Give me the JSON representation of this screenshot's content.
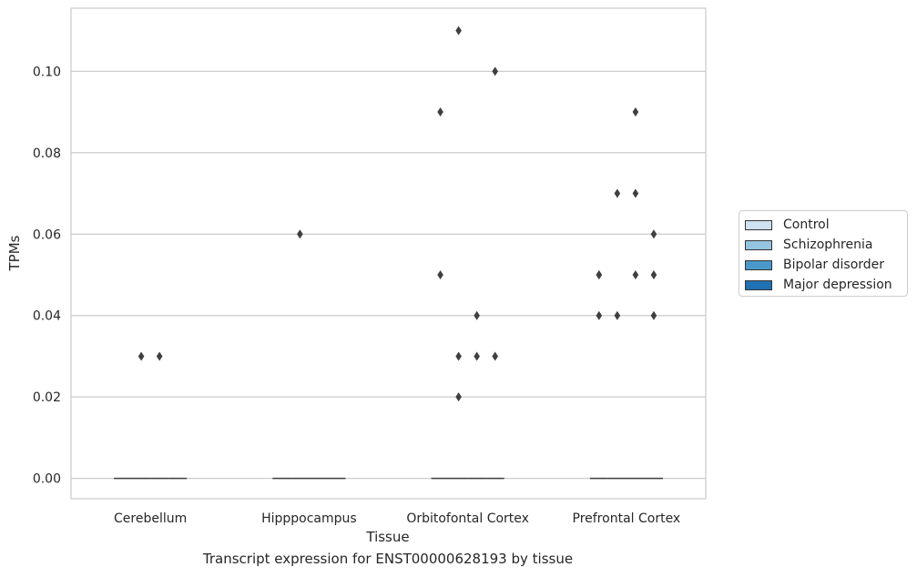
{
  "chart_data": {
    "type": "boxplot",
    "title": "",
    "caption": "Transcript expression for ENST00000628193 by tissue",
    "xlabel": "Tissue",
    "ylabel": "TPMs",
    "ylim": [
      -0.005,
      0.1155
    ],
    "yticks": [
      0.0,
      0.02,
      0.04,
      0.06,
      0.08,
      0.1
    ],
    "ytick_labels": [
      "0.00",
      "0.02",
      "0.04",
      "0.06",
      "0.08",
      "0.10"
    ],
    "grid": "horizontal",
    "legend_position": "right",
    "categories": [
      "Cerebellum",
      "Hipppocampus",
      "Orbitofontal Cortex",
      "Prefrontal Cortex"
    ],
    "series": [
      {
        "name": "Control",
        "color": "#d0e1f2",
        "median": [
          0,
          0,
          0,
          0
        ],
        "outliers": [
          [],
          [],
          [
            0.05,
            0.09
          ],
          [
            0.04,
            0.05,
            0.05
          ]
        ]
      },
      {
        "name": "Schizophrenia",
        "color": "#94c4df",
        "median": [
          0,
          0,
          0,
          0
        ],
        "outliers": [
          [
            0.03
          ],
          [
            0.06
          ],
          [
            0.02,
            0.03,
            0.11
          ],
          [
            0.04,
            0.07
          ]
        ]
      },
      {
        "name": "Bipolar disorder",
        "color": "#4a98c9",
        "median": [
          0,
          0,
          0,
          0
        ],
        "outliers": [
          [
            0.03
          ],
          [],
          [
            0.03,
            0.04
          ],
          [
            0.05,
            0.07,
            0.09
          ]
        ]
      },
      {
        "name": "Major depression",
        "color": "#2171b5",
        "median": [
          0,
          0,
          0,
          0
        ],
        "outliers": [
          [],
          [],
          [
            0.03,
            0.1
          ],
          [
            0.04,
            0.05,
            0.06
          ]
        ]
      }
    ]
  }
}
